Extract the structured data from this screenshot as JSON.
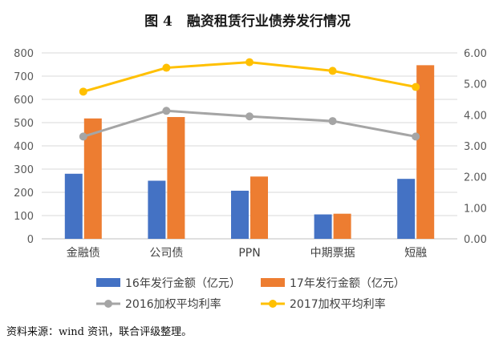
{
  "figure": {
    "label": "图 4",
    "title": "融资租赁行业债券发行情况"
  },
  "source_note": "资料来源：wind 资讯，联合评级整理。",
  "chart_data": {
    "type": "bar+line",
    "categories": [
      "金融债",
      "公司债",
      "PPN",
      "中期票据",
      "短融"
    ],
    "bar_series": [
      {
        "name": "16年发行金额（亿元）",
        "color": "#4472C4",
        "values": [
          280,
          250,
          207,
          105,
          258
        ]
      },
      {
        "name": "17年发行金额（亿元）",
        "color": "#ED7D31",
        "values": [
          518,
          524,
          268,
          108,
          747
        ]
      }
    ],
    "line_series": [
      {
        "name": "2016加权平均利率",
        "color": "#A5A5A5",
        "values": [
          3.3,
          4.13,
          3.95,
          3.8,
          3.3
        ]
      },
      {
        "name": "2017加权平均利率",
        "color": "#FFC000",
        "values": [
          4.75,
          5.52,
          5.7,
          5.42,
          4.9
        ]
      }
    ],
    "y_left": {
      "min": 0,
      "max": 800,
      "ticks": [
        "0",
        "100",
        "200",
        "300",
        "400",
        "500",
        "600",
        "700",
        "800"
      ]
    },
    "y_right": {
      "min": 0,
      "max": 6,
      "ticks": [
        "0.00",
        "1.00",
        "2.00",
        "3.00",
        "4.00",
        "5.00",
        "6.00"
      ]
    },
    "legend_position": "bottom"
  }
}
